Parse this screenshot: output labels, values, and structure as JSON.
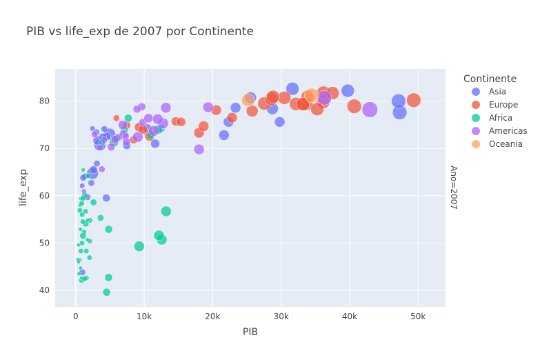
{
  "chart_data": {
    "type": "scatter",
    "title": "PIB vs life_exp de 2007 por Continente",
    "xlabel": "PIB",
    "ylabel": "life_exp",
    "xlim": [
      -3000,
      54000
    ],
    "ylim": [
      36.5,
      86.8
    ],
    "x_ticks": [
      0,
      10000,
      20000,
      30000,
      40000,
      50000
    ],
    "x_tick_labels": [
      "0",
      "10k",
      "20k",
      "30k",
      "40k",
      "50k"
    ],
    "y_ticks": [
      40,
      50,
      60,
      70,
      80
    ],
    "y_tick_labels": [
      "40",
      "50",
      "60",
      "70",
      "80"
    ],
    "grid": true,
    "legend_title": "Continente",
    "legend_position": "right",
    "facet_label": "Ano=2007",
    "series": [
      {
        "name": "Asia",
        "color": "#636efa",
        "points": [
          [
            974,
            43.8,
            5
          ],
          [
            29796,
            75.6,
            8
          ],
          [
            1391,
            64.1,
            5
          ],
          [
            1713,
            59.7,
            5
          ],
          [
            4959,
            73.0,
            9
          ],
          [
            39725,
            82.2,
            10
          ],
          [
            2452,
            64.7,
            9
          ],
          [
            3541,
            70.7,
            9
          ],
          [
            11606,
            71.0,
            7
          ],
          [
            4471,
            59.5,
            6
          ],
          [
            25523,
            80.7,
            9
          ],
          [
            31656,
            82.6,
            10
          ],
          [
            4519,
            72.5,
            6
          ],
          [
            23348,
            78.6,
            8
          ],
          [
            47307,
            77.6,
            11
          ],
          [
            10461,
            74.2,
            7
          ],
          [
            12452,
            74.2,
            6
          ],
          [
            3096,
            66.8,
            5
          ],
          [
            944,
            62.1,
            4
          ],
          [
            1091,
            63.8,
            5
          ],
          [
            22316,
            75.6,
            8
          ],
          [
            2606,
            65.5,
            6
          ],
          [
            3190,
            71.7,
            7
          ],
          [
            21655,
            72.8,
            8
          ],
          [
            47143,
            80.0,
            11
          ],
          [
            3970,
            72.4,
            6
          ],
          [
            4185,
            74.1,
            5
          ],
          [
            28718,
            78.4,
            9
          ],
          [
            7458,
            70.6,
            6
          ],
          [
            2442,
            74.2,
            4
          ],
          [
            3025,
            73.4,
            5
          ],
          [
            2281,
            62.7,
            5
          ]
        ]
      },
      {
        "name": "Europe",
        "color": "#EF553B",
        "points": [
          [
            5937,
            76.4,
            5
          ],
          [
            36126,
            79.8,
            10
          ],
          [
            33693,
            79.4,
            10
          ],
          [
            7446,
            74.9,
            6
          ],
          [
            10681,
            73.0,
            7
          ],
          [
            14619,
            75.7,
            7
          ],
          [
            22833,
            76.5,
            8
          ],
          [
            35278,
            78.3,
            10
          ],
          [
            33207,
            79.3,
            10
          ],
          [
            30470,
            80.7,
            10
          ],
          [
            32170,
            79.4,
            10
          ],
          [
            27538,
            79.5,
            10
          ],
          [
            18009,
            73.3,
            8
          ],
          [
            36181,
            81.8,
            10
          ],
          [
            40676,
            78.9,
            11
          ],
          [
            28570,
            80.5,
            10
          ],
          [
            9253,
            74.5,
            7
          ],
          [
            49357,
            80.2,
            11
          ],
          [
            15390,
            75.6,
            7
          ],
          [
            20510,
            78.1,
            8
          ],
          [
            10808,
            72.5,
            7
          ],
          [
            9787,
            74.0,
            7
          ],
          [
            18678,
            74.7,
            8
          ],
          [
            25768,
            77.9,
            9
          ],
          [
            28821,
            80.9,
            10
          ],
          [
            33860,
            80.9,
            10
          ],
          [
            37506,
            81.7,
            10
          ],
          [
            8458,
            71.8,
            6
          ],
          [
            33203,
            79.4,
            10
          ]
        ]
      },
      {
        "name": "Africa",
        "color": "#00cc96",
        "points": [
          [
            6223,
            72.3,
            6
          ],
          [
            4797,
            42.7,
            6
          ],
          [
            1441,
            56.7,
            4
          ],
          [
            12570,
            50.7,
            8
          ],
          [
            1217,
            52.3,
            4
          ],
          [
            430,
            49.6,
            3
          ],
          [
            2042,
            50.4,
            4
          ],
          [
            706,
            44.7,
            3
          ],
          [
            1704,
            50.7,
            3
          ],
          [
            986,
            65.2,
            2
          ],
          [
            277,
            46.5,
            3
          ],
          [
            3633,
            55.3,
            5
          ],
          [
            1545,
            48.3,
            4
          ],
          [
            2082,
            54.8,
            4
          ],
          [
            5581,
            71.3,
            7
          ],
          [
            12154,
            51.6,
            8
          ],
          [
            641,
            58.0,
            3
          ],
          [
            691,
            52.9,
            3
          ],
          [
            13206,
            56.7,
            8
          ],
          [
            753,
            59.4,
            3
          ],
          [
            1327,
            60.0,
            5
          ],
          [
            943,
            56.0,
            4
          ],
          [
            580,
            46.4,
            3
          ],
          [
            1463,
            54.1,
            5
          ],
          [
            1569,
            42.6,
            4
          ],
          [
            415,
            46.0,
            3
          ],
          [
            12057,
            74.0,
            7
          ],
          [
            1045,
            59.4,
            4
          ],
          [
            759,
            48.3,
            4
          ],
          [
            1042,
            54.5,
            4
          ],
          [
            1803,
            64.2,
            4
          ],
          [
            10957,
            72.8,
            6
          ],
          [
            3820,
            71.2,
            5
          ],
          [
            824,
            42.1,
            4
          ],
          [
            4811,
            52.9,
            6
          ],
          [
            620,
            56.9,
            4
          ],
          [
            2014,
            46.9,
            4
          ],
          [
            7670,
            76.4,
            6
          ],
          [
            1712,
            54.8,
            3
          ],
          [
            862,
            42.6,
            3
          ],
          [
            926,
            50.0,
            4
          ],
          [
            9270,
            49.3,
            8
          ],
          [
            2602,
            58.6,
            5
          ],
          [
            4513,
            39.6,
            6
          ],
          [
            1107,
            65.5,
            3
          ],
          [
            883,
            58.4,
            4
          ],
          [
            7093,
            73.9,
            6
          ],
          [
            1056,
            51.5,
            5
          ],
          [
            1271,
            42.4,
            4
          ],
          [
            470,
            43.5,
            3
          ]
        ]
      },
      {
        "name": "Americas",
        "color": "#ab63fa",
        "points": [
          [
            12779,
            75.3,
            8
          ],
          [
            3822,
            65.6,
            5
          ],
          [
            9065,
            72.4,
            8
          ],
          [
            36319,
            80.7,
            11
          ],
          [
            13172,
            78.6,
            8
          ],
          [
            7007,
            72.9,
            7
          ],
          [
            9645,
            78.8,
            6
          ],
          [
            8948,
            78.3,
            6
          ],
          [
            6025,
            72.2,
            6
          ],
          [
            6873,
            74.99,
            7
          ],
          [
            5728,
            71.9,
            6
          ],
          [
            5186,
            70.3,
            6
          ],
          [
            1202,
            60.9,
            4
          ],
          [
            3548,
            70.2,
            5
          ],
          [
            7321,
            72.6,
            5
          ],
          [
            11978,
            76.2,
            8
          ],
          [
            2749,
            73.0,
            5
          ],
          [
            9809,
            75.5,
            6
          ],
          [
            4173,
            71.8,
            5
          ],
          [
            7409,
            71.4,
            6
          ],
          [
            19329,
            78.7,
            8
          ],
          [
            18009,
            69.8,
            8
          ],
          [
            42952,
            78.2,
            12
          ],
          [
            10611,
            76.4,
            7
          ],
          [
            11416,
            73.7,
            8
          ]
        ]
      },
      {
        "name": "Oceania",
        "color": "#FFA15A",
        "points": [
          [
            34435,
            81.2,
            11
          ],
          [
            25185,
            80.2,
            10
          ]
        ]
      }
    ]
  }
}
